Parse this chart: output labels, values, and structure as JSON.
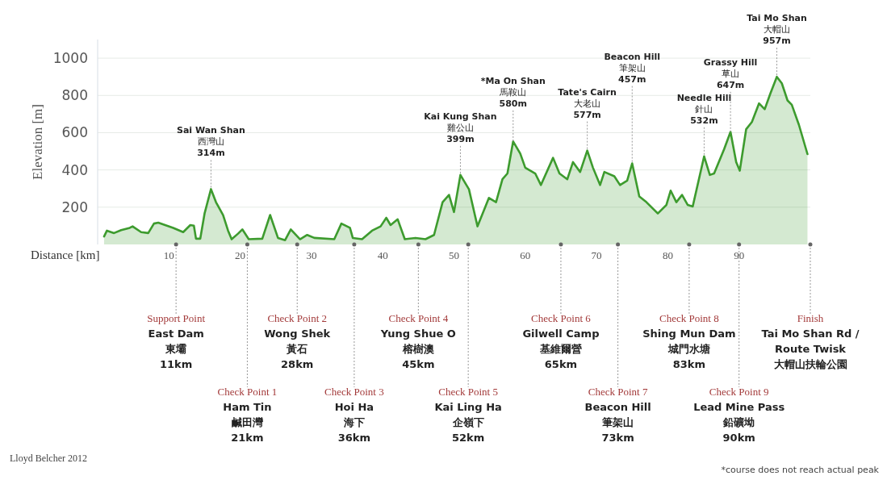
{
  "chart_data": {
    "type": "area",
    "xlabel": "Distance [km]",
    "ylabel": "Elevation [m]",
    "color": "#3d9b2e",
    "x": [
      0.9,
      1.3,
      2.3,
      3.3,
      4.5,
      4.9,
      6.1,
      7.1,
      7.9,
      8.5,
      10.6,
      12.0,
      13.0,
      13.5,
      13.8,
      14.4,
      15.0,
      15.9,
      16.6,
      17.6,
      18.3,
      18.8,
      19.7,
      20.3,
      21.2,
      23.1,
      24.2,
      25.3,
      26.3,
      27.1,
      28.4,
      29.4,
      30.4,
      33.2,
      34.2,
      35.4,
      35.8,
      37.1,
      38.5,
      39.7,
      40.5,
      41.1,
      42.1,
      43.1,
      44.6,
      46.0,
      47.2,
      48.4,
      49.3,
      50.0,
      50.9,
      52.1,
      53.3,
      54.9,
      55.9,
      56.8,
      57.5,
      58.3,
      59.3,
      60.0,
      61.4,
      62.2,
      63.9,
      64.8,
      65.9,
      66.7,
      67.7,
      68.7,
      69.5,
      70.5,
      71.1,
      72.5,
      73.3,
      74.3,
      75.0,
      76.0,
      77.0,
      78.6,
      79.8,
      80.4,
      81.2,
      82.0,
      82.8,
      83.5,
      85.1,
      85.9,
      86.5,
      87.9,
      88.8,
      89.6,
      90.1,
      91.0,
      91.8,
      92.8,
      93.6,
      94.4,
      95.3,
      96.0,
      96.8,
      97.4,
      98.4,
      99.6
    ],
    "values": [
      43,
      74,
      61,
      77,
      89,
      97,
      66,
      61,
      112,
      117,
      89,
      66,
      104,
      101,
      31,
      31,
      166,
      297,
      227,
      158,
      74,
      28,
      58,
      81,
      28,
      31,
      158,
      35,
      23,
      81,
      28,
      51,
      35,
      28,
      112,
      89,
      35,
      28,
      74,
      97,
      143,
      104,
      135,
      28,
      35,
      28,
      51,
      227,
      266,
      174,
      373,
      296,
      97,
      250,
      227,
      350,
      381,
      553,
      488,
      412,
      381,
      319,
      465,
      381,
      350,
      442,
      389,
      504,
      412,
      319,
      389,
      366,
      319,
      343,
      435,
      258,
      227,
      166,
      212,
      289,
      227,
      266,
      212,
      204,
      473,
      373,
      381,
      511,
      604,
      442,
      396,
      619,
      657,
      757,
      726,
      811,
      900,
      865,
      773,
      750,
      642,
      485
    ],
    "xlim": [
      0,
      100
    ],
    "ylim": [
      0,
      1100
    ],
    "xticks": [
      10,
      20,
      30,
      40,
      50,
      60,
      70,
      80,
      90
    ],
    "yticks": [
      200,
      400,
      600,
      800,
      1000
    ],
    "grid": "y",
    "ref_lines": [
      {
        "axis": "x",
        "value": 11,
        "label": "Support Point\nEast Dam\n東壩\n11km",
        "color": "#999999",
        "line_style": "dotted"
      },
      {
        "axis": "x",
        "value": 21,
        "label": "Check Point 1\nHam Tin\n鹹田灣\n21km",
        "color": "#999999",
        "line_style": "dotted"
      },
      {
        "axis": "x",
        "value": 28,
        "label": "Check Point 2\nWong Shek\n黃石\n28km",
        "color": "#999999",
        "line_style": "dotted"
      },
      {
        "axis": "x",
        "value": 36,
        "label": "Check Point 3\nHoi Ha\n海下\n36km",
        "color": "#999999",
        "line_style": "dotted"
      },
      {
        "axis": "x",
        "value": 45,
        "label": "Check Point 4\nYung Shue O\n榕樹澳\n45km",
        "color": "#999999",
        "line_style": "dotted"
      },
      {
        "axis": "x",
        "value": 52,
        "label": "Check Point 5\nKai Ling Ha\n企嶺下\n52km",
        "color": "#999999",
        "line_style": "dotted"
      },
      {
        "axis": "x",
        "value": 65,
        "label": "Check Point 6\nGilwell Camp\n基維爾營\n65km",
        "color": "#999999",
        "line_style": "dotted"
      },
      {
        "axis": "x",
        "value": 73,
        "label": "Check Point 7\nBeacon Hill\n筆架山\n73km",
        "color": "#999999",
        "line_style": "dotted"
      },
      {
        "axis": "x",
        "value": 83,
        "label": "Check Point 8\nShing Mun Dam\n城門水塘\n83km",
        "color": "#999999",
        "line_style": "dotted"
      },
      {
        "axis": "x",
        "value": 90,
        "label": "Check Point 9\nLead Mine Pass\n鉛礦坳\n90km",
        "color": "#999999",
        "line_style": "dotted"
      },
      {
        "axis": "x",
        "value": 100,
        "label": "Finish\nTai Mo Shan Rd /\nRoute Twisk\n大帽山扶輪公園",
        "color": "#999999",
        "line_style": "dotted"
      }
    ],
    "annotations": [
      {
        "text": "Sai Wan Shan\n西灣山\n314m",
        "x": 15.9,
        "y": 297
      },
      {
        "text": "Kai Kung Shan\n雞公山\n399m",
        "x": 50.9,
        "y": 373
      },
      {
        "text": "*Ma On Shan\n馬鞍山\n580m",
        "x": 58.3,
        "y": 553
      },
      {
        "text": "Tate's Cairn\n大老山\n577m",
        "x": 68.7,
        "y": 504
      },
      {
        "text": "Beacon Hill\n筆架山\n457m",
        "x": 75.0,
        "y": 435
      },
      {
        "text": "Needle Hill\n針山\n532m",
        "x": 85.1,
        "y": 473
      },
      {
        "text": "Grassy Hill\n草山\n647m",
        "x": 88.8,
        "y": 604
      },
      {
        "text": "Tai Mo Shan\n大帽山\n957m",
        "x": 95.3,
        "y": 900
      },
      "Lloyd Belcher 2012",
      "*course does not reach actual peak"
    ]
  }
}
